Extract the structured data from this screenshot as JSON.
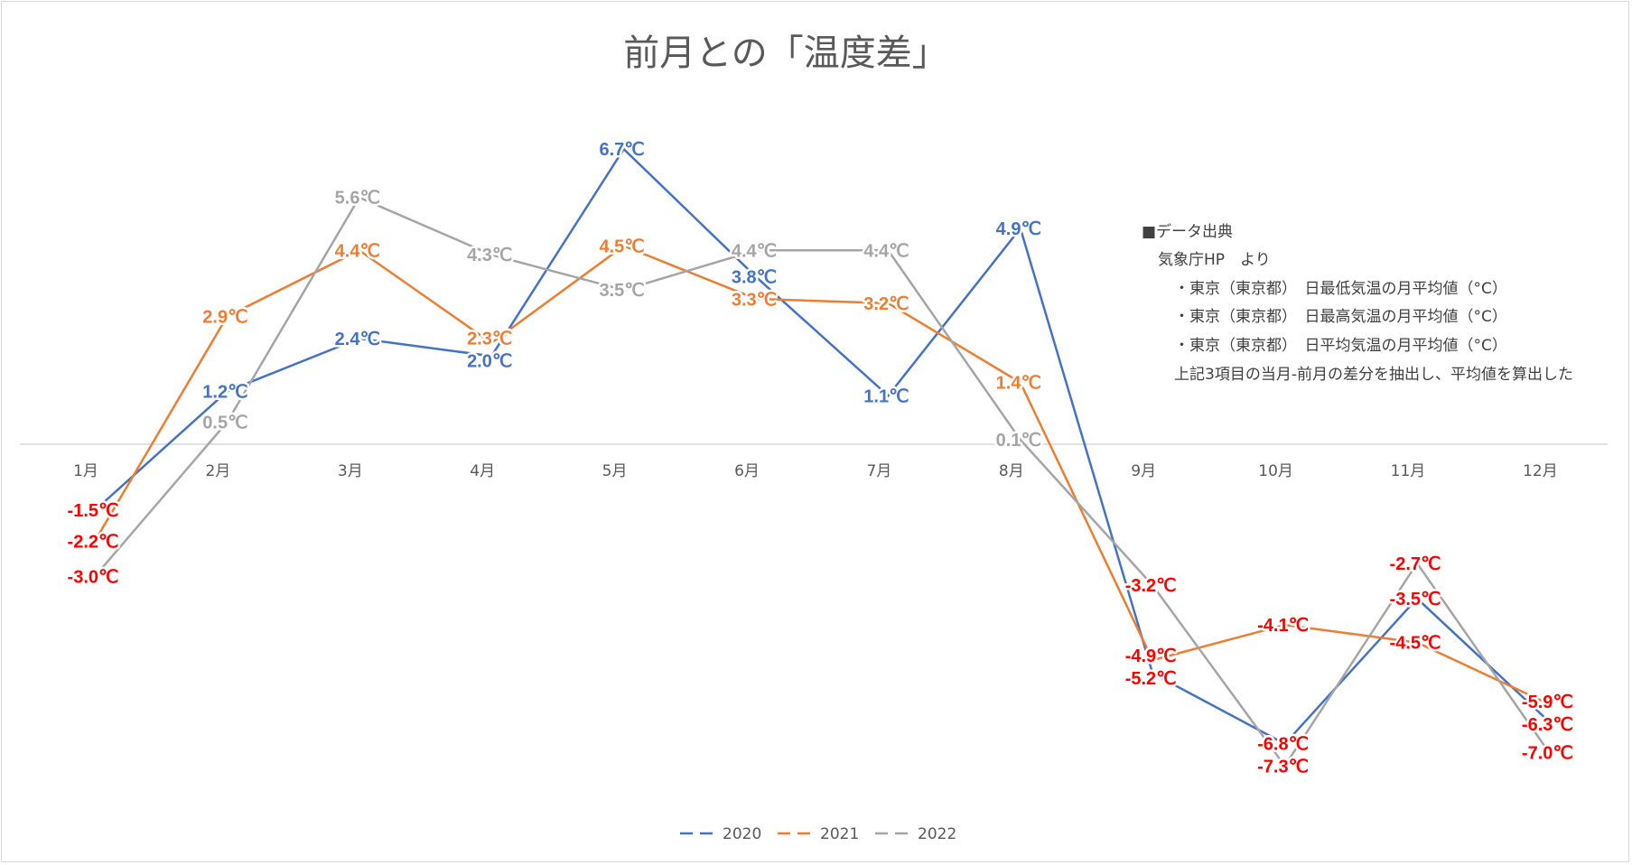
{
  "chart_data": {
    "type": "line",
    "title": "前月との「温度差」",
    "categories": [
      "1月",
      "2月",
      "3月",
      "4月",
      "5月",
      "6月",
      "7月",
      "8月",
      "9月",
      "10月",
      "11月",
      "12月"
    ],
    "unit": "℃",
    "ylim": [
      -8,
      8
    ],
    "grid": false,
    "legend_position": "bottom",
    "negative_label_color": "#FF0000",
    "series": [
      {
        "name": "2020",
        "color": "#4472C4",
        "dashed_legend": true,
        "values": [
          -1.5,
          1.2,
          2.4,
          2.0,
          6.7,
          3.8,
          1.1,
          4.9,
          -5.2,
          -6.8,
          -3.5,
          -6.3
        ]
      },
      {
        "name": "2021",
        "color": "#ED7D31",
        "dashed_legend": true,
        "values": [
          -2.2,
          2.9,
          4.4,
          2.3,
          4.5,
          3.3,
          3.2,
          1.4,
          -4.9,
          -4.1,
          -4.5,
          -5.9
        ]
      },
      {
        "name": "2022",
        "color": "#A5A5A5",
        "dashed_legend": true,
        "values": [
          -3.0,
          0.5,
          5.6,
          4.3,
          3.5,
          4.4,
          4.4,
          0.1,
          -3.2,
          -7.3,
          -2.7,
          -7.0
        ]
      }
    ]
  },
  "note": {
    "heading": "■データ出典",
    "source": "気象庁HP　より",
    "items": [
      "・東京（東京都）　日最低気温の月平均値（°C）",
      "・東京（東京都）　日最高気温の月平均値（°C）",
      "・東京（東京都）　日平均気温の月平均値（°C）"
    ],
    "method": "上記3項目の当月-前月の差分を抽出し、平均値を算出した"
  }
}
